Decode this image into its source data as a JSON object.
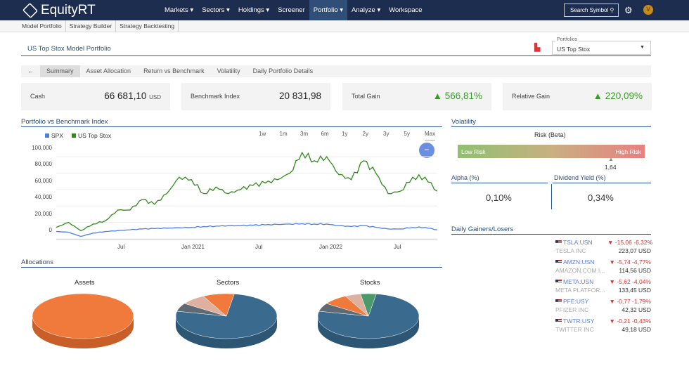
{
  "app": {
    "name": "EquityRT"
  },
  "nav": [
    "Markets ▾",
    "Sectors ▾",
    "Holdings ▾",
    "Screener",
    "Portfolio ▾",
    "Analyze ▾",
    "Workspace"
  ],
  "search": "Search Symbol",
  "avatar": "V",
  "subnav": [
    "Model Portfolio",
    "Strategy Builder",
    "Strategy Backtesting"
  ],
  "page": {
    "title": "US Top Stox Model Portfolio",
    "portfolios_label": "Portfolios",
    "portfolio": "US Top Stox"
  },
  "tabs": [
    "Summary",
    "Asset Allocation",
    "Return vs Benchmark",
    "Volatility",
    "Daily Portfolio Details"
  ],
  "cards": [
    {
      "label": "Cash",
      "value": "66 681,10",
      "unit": "USD"
    },
    {
      "label": "Benchmark Index",
      "value": "20 831,98"
    },
    {
      "label": "Total Gain",
      "value": "566,81%",
      "trend": "up"
    },
    {
      "label": "Relative Gain",
      "value": "220,09%",
      "trend": "up"
    }
  ],
  "chart_data": {
    "type": "line",
    "title": "Portfolio vs Benchmark Index",
    "ranges": [
      "1w",
      "1m",
      "3m",
      "6m",
      "1y",
      "2y",
      "3y",
      "5y",
      "Max"
    ],
    "selected_range": "Max",
    "ylim": [
      0,
      100000
    ],
    "yticks": [
      "0",
      "20,000",
      "40,000",
      "60,000",
      "80,000",
      "100,000"
    ],
    "xticks": [
      "Jul",
      "Jan 2021",
      "Jul",
      "Jan 2022",
      "Jul"
    ],
    "x": [
      "2020-03",
      "2020-04",
      "2020-05",
      "2020-06",
      "2020-07",
      "2020-08",
      "2020-09",
      "2020-10",
      "2020-11",
      "2020-12",
      "2021-01",
      "2021-02",
      "2021-03",
      "2021-04",
      "2021-05",
      "2021-06",
      "2021-07",
      "2021-08",
      "2021-09",
      "2021-10",
      "2021-11",
      "2021-12",
      "2022-01",
      "2022-02",
      "2022-03",
      "2022-04",
      "2022-05",
      "2022-06",
      "2022-07",
      "2022-08",
      "2022-09",
      "2022-10"
    ],
    "series": [
      {
        "name": "SPX",
        "color": "#4a7fe8",
        "values": [
          9000,
          8000,
          3000,
          7000,
          9000,
          10000,
          11000,
          12000,
          12500,
          13000,
          13500,
          14000,
          15000,
          15500,
          16000,
          16000,
          16500,
          17000,
          17500,
          18000,
          18500,
          18000,
          18000,
          16000,
          15000,
          16000,
          14000,
          12000,
          12000,
          14000,
          14000,
          11000
        ]
      },
      {
        "name": "US Top Stox",
        "color": "#2f8a1a",
        "values": [
          14000,
          20000,
          10000,
          18000,
          22000,
          35000,
          35000,
          48000,
          42000,
          55000,
          75000,
          72000,
          55000,
          63000,
          55000,
          60000,
          65000,
          68000,
          72000,
          80000,
          105000,
          95000,
          100000,
          78000,
          72000,
          95000,
          80000,
          55000,
          58000,
          75000,
          75000,
          58000
        ]
      }
    ]
  },
  "volatility": {
    "title": "Volatility",
    "risk_label": "Risk (Beta)",
    "low": "Low Risk",
    "high": "High Risk",
    "beta": "1,64",
    "alpha_label": "Alpha (%)",
    "alpha": "0,10%",
    "div_label": "Dividend Yield (%)",
    "div": "0,34%"
  },
  "allocations": {
    "title": "Allocations",
    "pies": [
      {
        "title": "Assets",
        "slices": [
          {
            "v": 100,
            "c": "#f07a3c"
          }
        ]
      },
      {
        "title": "Sectors",
        "slices": [
          {
            "v": 76,
            "c": "#3a6a8e"
          },
          {
            "v": 6,
            "c": "#5f6a72"
          },
          {
            "v": 8,
            "c": "#deb0a0"
          },
          {
            "v": 10,
            "c": "#f07a3c"
          }
        ]
      },
      {
        "title": "Stocks",
        "slices": [
          {
            "v": 76,
            "c": "#3a6a8e"
          },
          {
            "v": 6,
            "c": "#5f6a72"
          },
          {
            "v": 8,
            "c": "#f07a3c"
          },
          {
            "v": 5,
            "c": "#deb0a0"
          },
          {
            "v": 5,
            "c": "#4a9a6a"
          }
        ]
      }
    ]
  },
  "gainers": {
    "title": "Daily Gainers/Losers",
    "items": [
      {
        "ticker": "TSLA:USN",
        "name": "TESLA INC",
        "change": "▼ -15,06  -6,32%",
        "price": "223,07 USD"
      },
      {
        "ticker": "AMZN:USN",
        "name": "AMAZON.COM I...",
        "change": "▼ -5,74  -4,77%",
        "price": "114,56 USD"
      },
      {
        "ticker": "META:USN",
        "name": "META PLATFOR...",
        "change": "▼ -5,62  -4,04%",
        "price": "133,45 USD"
      },
      {
        "ticker": "PFE:USY",
        "name": "PFIZER INC",
        "change": "▼ -0,77  -1,79%",
        "price": "42,32 USD"
      },
      {
        "ticker": "TWTR:USY",
        "name": "TWITTER INC",
        "change": "▼ -0,21  -0,43%",
        "price": "49,18 USD"
      }
    ]
  }
}
